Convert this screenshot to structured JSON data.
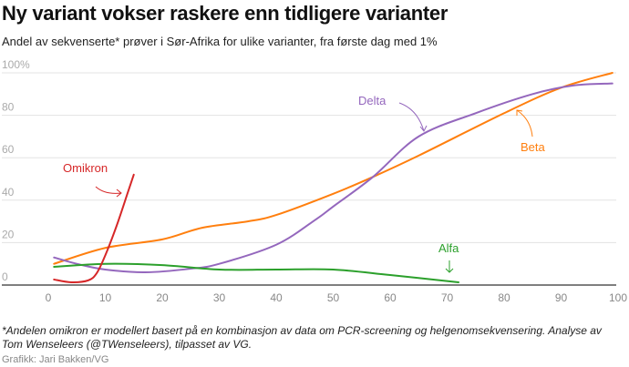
{
  "chart_data": {
    "type": "line",
    "title": "Ny variant vokser raskere enn tidligere varianter",
    "subtitle": "Andel av sekvenserte* prøver i Sør-Afrika for ulike varianter, fra første dag med 1%",
    "xlabel": "",
    "ylabel": "",
    "xlim": [
      0,
      100
    ],
    "ylim": [
      0,
      100
    ],
    "xticks": [
      "0",
      "10",
      "20",
      "30",
      "40",
      "50",
      "60",
      "70",
      "80",
      "90",
      "100"
    ],
    "yticks": [
      "0",
      "20",
      "40",
      "60",
      "80",
      "100%"
    ],
    "grid": true,
    "series": [
      {
        "name": "Beta",
        "color": "#ff7f0e",
        "x": [
          1,
          10,
          20,
          27,
          35,
          40,
          50,
          57,
          65,
          80,
          90,
          99
        ],
        "y": [
          10,
          17.5,
          21.5,
          27,
          30,
          33,
          43,
          51,
          61,
          81,
          93,
          100
        ]
      },
      {
        "name": "Delta",
        "color": "#9467bd",
        "x": [
          1,
          5,
          10,
          17,
          25,
          30,
          40,
          47,
          50,
          57,
          65,
          75,
          85,
          92,
          99
        ],
        "y": [
          13,
          10,
          7.3,
          6,
          7.7,
          10,
          19,
          31,
          37,
          51,
          70,
          81,
          90,
          94,
          95
        ]
      },
      {
        "name": "Alfa",
        "color": "#2ca02c",
        "x": [
          1,
          10,
          20,
          30,
          40,
          50,
          60,
          72
        ],
        "y": [
          8.6,
          10,
          9.4,
          7.3,
          7.3,
          7.3,
          4.7,
          1.3
        ]
      },
      {
        "name": "Omikron",
        "color": "#d62728",
        "x": [
          1,
          4,
          7,
          8.5,
          10,
          12,
          14,
          15
        ],
        "y": [
          2.6,
          1.3,
          2.2,
          5.6,
          14,
          28,
          44,
          52
        ]
      }
    ]
  },
  "footnote": "*Andelen omikron er modellert basert på en kombinasjon av data om PCR-screening og helgenomsekvensering. Analyse av Tom Wenseleers (@TWenseleers), tilpasset av VG.",
  "credit": "Grafikk: Jari Bakken/VG"
}
